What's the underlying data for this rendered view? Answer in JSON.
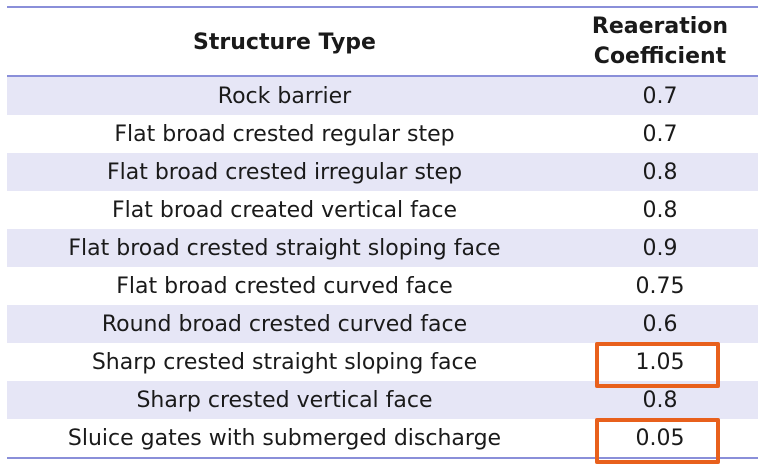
{
  "colors": {
    "stripe": "#e6e6f6",
    "rule": "#8a8fd9",
    "text": "#1a1a1a",
    "highlight": "#e8601c"
  },
  "table": {
    "headers": {
      "structure_type": "Structure Type",
      "coefficient_line1": "Reaeration",
      "coefficient_line2": "Coefficient"
    },
    "rows": [
      {
        "structure": "Rock barrier",
        "coefficient": "0.7",
        "highlighted": false
      },
      {
        "structure": "Flat broad crested regular step",
        "coefficient": "0.7",
        "highlighted": false
      },
      {
        "structure": "Flat broad crested irregular step",
        "coefficient": "0.8",
        "highlighted": false
      },
      {
        "structure": "Flat broad created vertical face",
        "coefficient": "0.8",
        "highlighted": false
      },
      {
        "structure": "Flat broad crested straight sloping face",
        "coefficient": "0.9",
        "highlighted": false
      },
      {
        "structure": "Flat broad crested curved face",
        "coefficient": "0.75",
        "highlighted": false
      },
      {
        "structure": "Round broad crested curved face",
        "coefficient": "0.6",
        "highlighted": false
      },
      {
        "structure": "Sharp crested straight sloping face",
        "coefficient": "1.05",
        "highlighted": true
      },
      {
        "structure": "Sharp crested vertical face",
        "coefficient": "0.8",
        "highlighted": false
      },
      {
        "structure": "Sluice gates with submerged discharge",
        "coefficient": "0.05",
        "highlighted": true
      }
    ]
  }
}
